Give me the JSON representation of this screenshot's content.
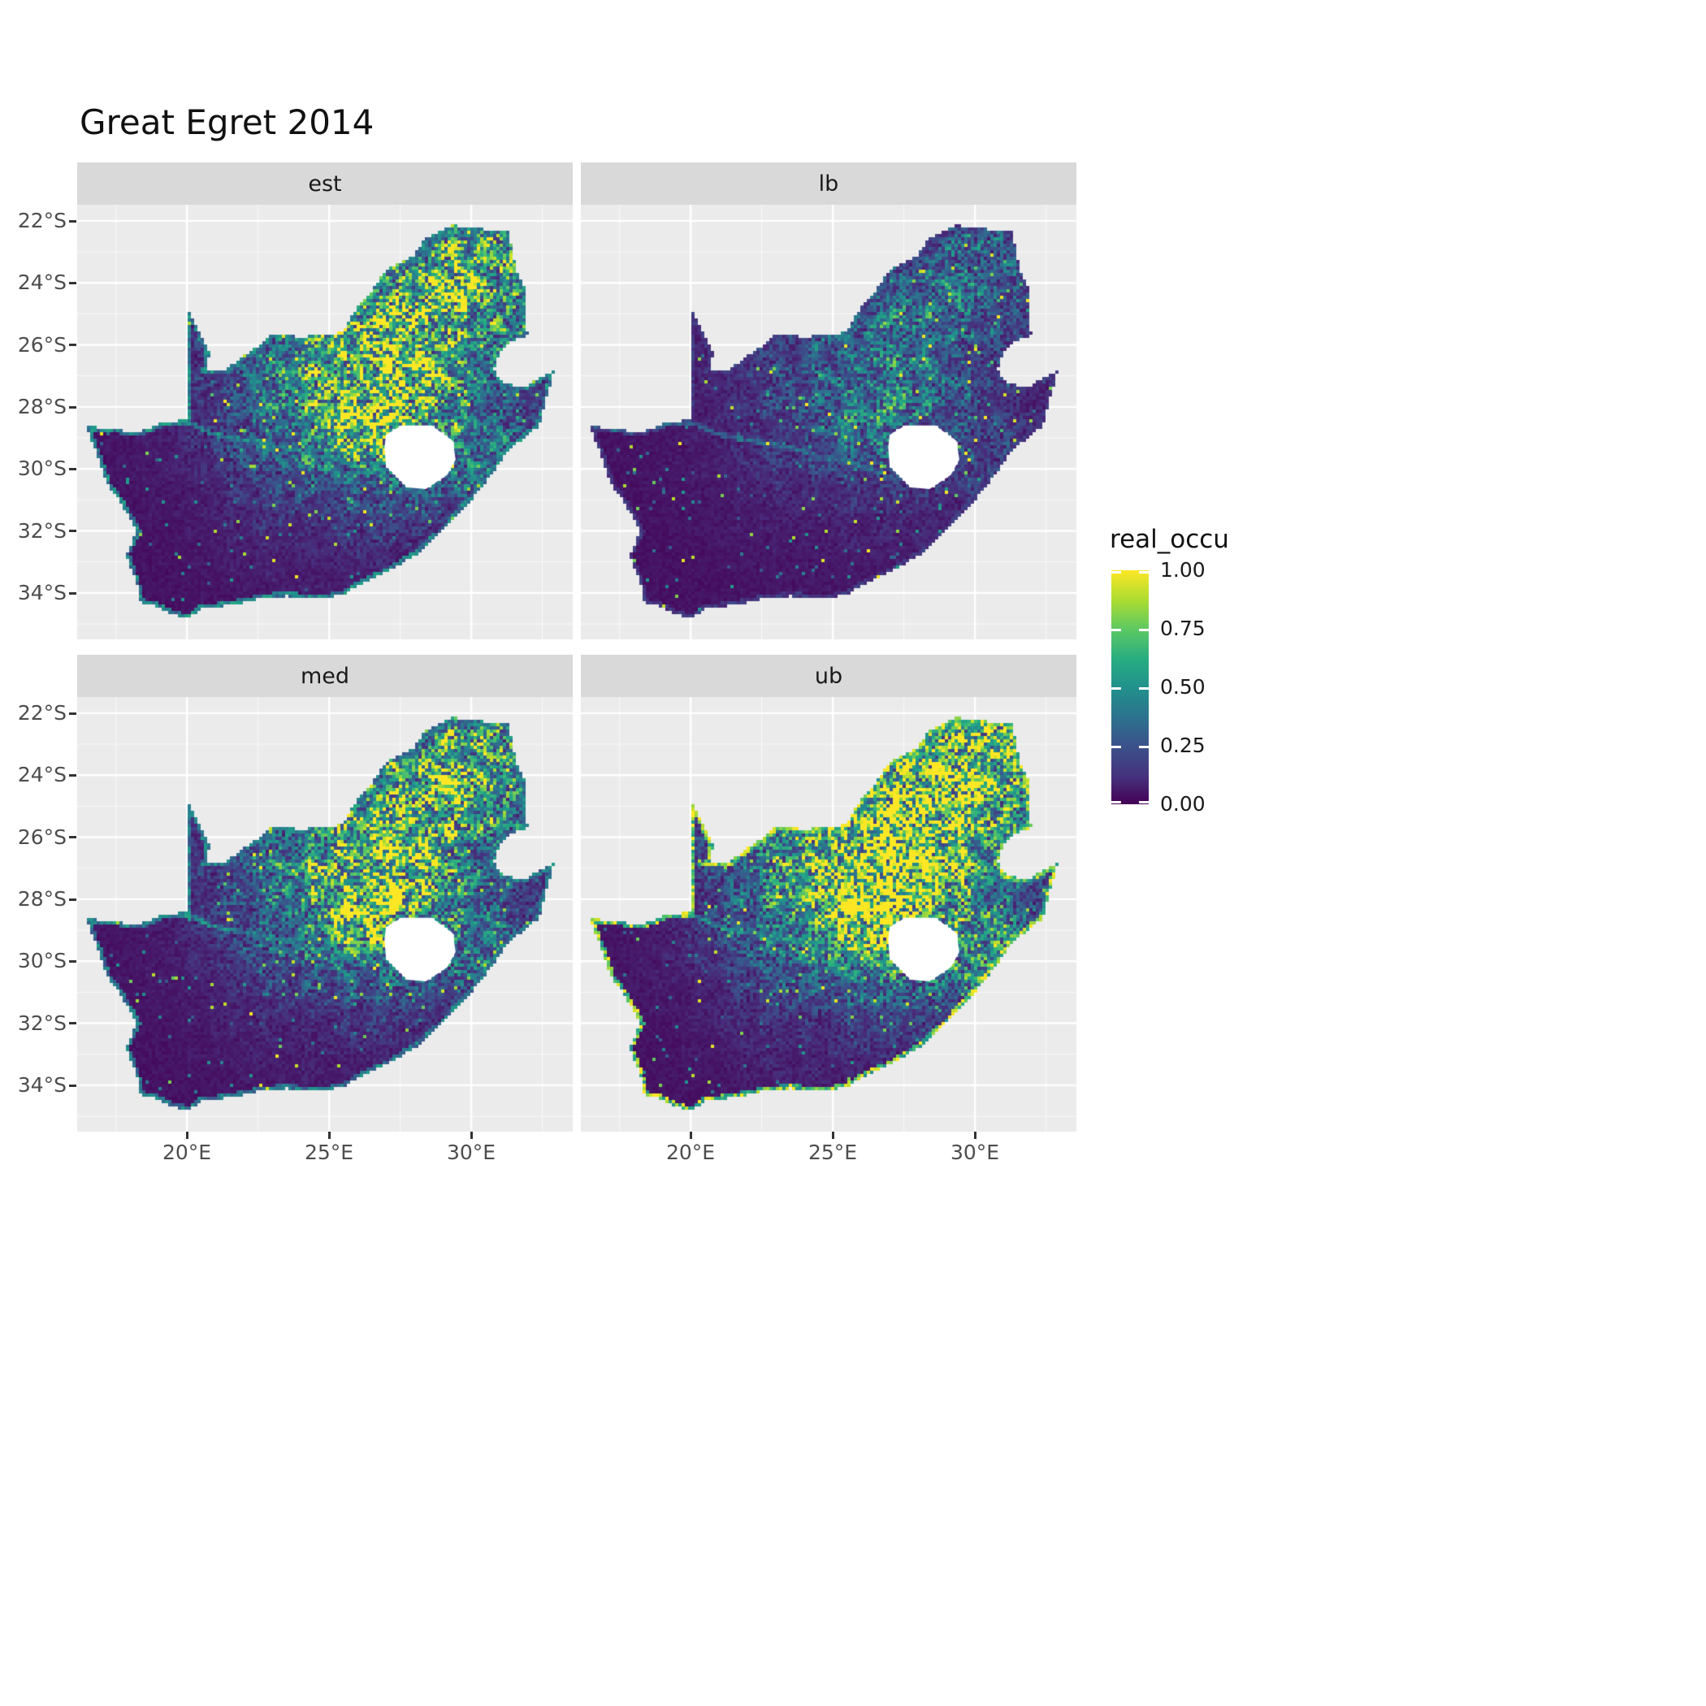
{
  "title": "Great Egret 2014",
  "chart_data": {
    "type": "heatmap",
    "title": "Great Egret 2014",
    "region": "South Africa occupancy raster map, faceted 2x2",
    "facets": [
      {
        "label": "est"
      },
      {
        "label": "lb"
      },
      {
        "label": "med"
      },
      {
        "label": "ub"
      }
    ],
    "x_axis": {
      "ticks": [
        "20°E",
        "25°E",
        "30°E"
      ]
    },
    "y_axis": {
      "ticks": [
        "22°S",
        "24°S",
        "26°S",
        "28°S",
        "30°S",
        "32°S",
        "34°S"
      ]
    },
    "legend": {
      "title": "real_occu",
      "ticks": [
        "1.00",
        "0.75",
        "0.50",
        "0.25",
        "0.00"
      ],
      "range": [
        0,
        1
      ],
      "colormap": "viridis",
      "stops": [
        "#440154",
        "#3b528b",
        "#21918c",
        "#5ec962",
        "#fde725"
      ]
    },
    "value_range": [
      0,
      1
    ],
    "panel_background": "#EBEBEB",
    "strip_background": "#D9D9D9",
    "grid_color": "#FFFFFF"
  }
}
